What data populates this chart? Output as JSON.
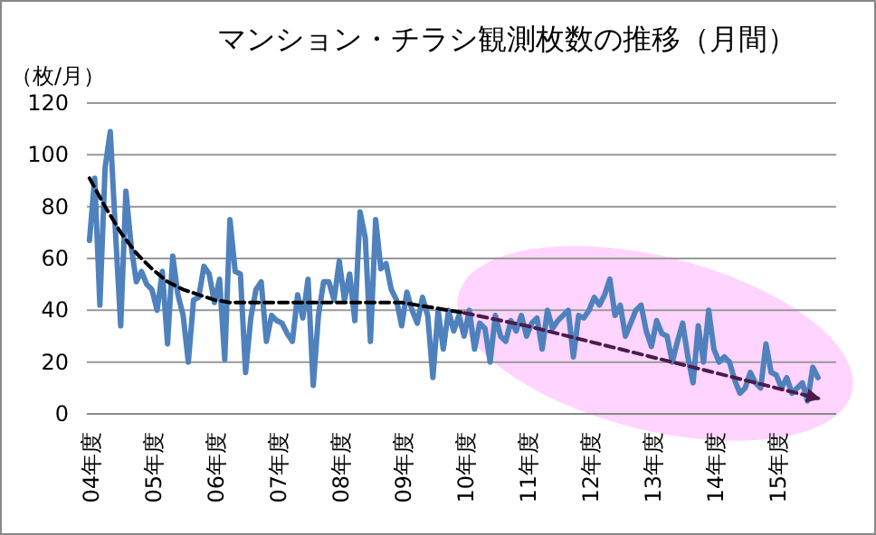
{
  "chart_data": {
    "type": "line",
    "title": "マンション・チラシ観測枚数の推移（月間）",
    "ylabel": "（枚/月）",
    "categories": [
      "04年度",
      null,
      null,
      null,
      null,
      null,
      null,
      null,
      null,
      null,
      null,
      null,
      "05年度",
      null,
      null,
      null,
      null,
      null,
      null,
      null,
      null,
      null,
      null,
      null,
      "06年度",
      null,
      null,
      null,
      null,
      null,
      null,
      null,
      null,
      null,
      null,
      null,
      "07年度",
      null,
      null,
      null,
      null,
      null,
      null,
      null,
      null,
      null,
      null,
      null,
      "08年度",
      null,
      null,
      null,
      null,
      null,
      null,
      null,
      null,
      null,
      null,
      null,
      "09年度",
      null,
      null,
      null,
      null,
      null,
      null,
      null,
      null,
      null,
      null,
      null,
      "10年度",
      null,
      null,
      null,
      null,
      null,
      null,
      null,
      null,
      null,
      null,
      null,
      "11年度",
      null,
      null,
      null,
      null,
      null,
      null,
      null,
      null,
      null,
      null,
      null,
      "12年度",
      null,
      null,
      null,
      null,
      null,
      null,
      null,
      null,
      null,
      null,
      null,
      "13年度",
      null,
      null,
      null,
      null,
      null,
      null,
      null,
      null,
      null,
      null,
      null,
      "14年度",
      null,
      null,
      null,
      null,
      null,
      null,
      null,
      null,
      null,
      null,
      null,
      "15年度",
      null,
      null,
      null,
      null,
      null,
      null,
      null,
      null,
      null,
      null,
      null
    ],
    "series": [
      {
        "color": "#4f81bd",
        "values": [
          67,
          91,
          42,
          95,
          109,
          70,
          34,
          86,
          65,
          51,
          55,
          50,
          48,
          40,
          55,
          27,
          61,
          46,
          38,
          20,
          44,
          45,
          57,
          54,
          43,
          52,
          21,
          75,
          55,
          54,
          16,
          37,
          48,
          51,
          28,
          38,
          36,
          35,
          31,
          28,
          46,
          37,
          52,
          11,
          38,
          51,
          51,
          44,
          59,
          44,
          54,
          36,
          78,
          68,
          28,
          75,
          56,
          58,
          48,
          44,
          34,
          47,
          40,
          35,
          45,
          38,
          14,
          40,
          25,
          40,
          32,
          38,
          30,
          40,
          25,
          35,
          33,
          20,
          38,
          30,
          28,
          36,
          32,
          38,
          30,
          35,
          37,
          25,
          40,
          33,
          36,
          38,
          40,
          22,
          38,
          37,
          40,
          45,
          42,
          46,
          52,
          38,
          42,
          30,
          35,
          40,
          42,
          32,
          26,
          36,
          31,
          30,
          20,
          28,
          35,
          22,
          12,
          34,
          20,
          40,
          25,
          20,
          22,
          20,
          13,
          8,
          10,
          16,
          12,
          10,
          27,
          16,
          15,
          10,
          14,
          8,
          10,
          12,
          5,
          18,
          14,
          null,
          null,
          null
        ]
      },
      {
        "type": "line",
        "color": "#000000",
        "line_style": "dashed",
        "values": [
          91,
          null,
          null,
          80,
          null,
          null,
          70,
          null,
          null,
          62,
          null,
          null,
          56,
          null,
          null,
          51,
          null,
          null,
          48,
          null,
          null,
          46,
          null,
          null,
          44,
          null,
          null,
          43,
          null,
          null,
          43,
          null,
          null,
          43,
          null,
          null,
          43,
          null,
          null,
          43,
          null,
          null,
          43,
          null,
          null,
          43,
          null,
          null,
          43,
          null,
          null,
          43,
          null,
          null,
          43,
          null,
          null,
          43,
          null,
          null,
          43,
          null,
          null,
          42,
          null,
          null,
          41,
          null,
          null,
          40,
          null,
          null,
          39,
          null,
          null,
          null,
          null,
          null,
          null,
          null,
          null,
          null,
          null,
          null,
          null,
          null,
          null,
          null,
          null,
          null,
          null,
          null,
          null,
          null,
          null,
          null,
          null,
          null,
          null,
          null,
          null,
          null,
          null,
          null,
          null,
          null,
          null,
          null,
          null,
          null,
          null,
          null,
          null,
          null,
          null,
          null,
          null,
          null,
          null,
          null,
          null,
          null,
          null,
          null,
          null,
          null,
          null,
          null,
          null,
          null,
          null,
          null,
          null,
          null,
          null,
          null,
          null,
          null,
          null,
          null,
          null,
          null,
          null,
          null
        ]
      },
      {
        "type": "line",
        "color": "#4b1c4b",
        "line_style": "dashed",
        "values": [
          null,
          null,
          null,
          null,
          null,
          null,
          null,
          null,
          null,
          null,
          null,
          null,
          null,
          null,
          null,
          null,
          null,
          null,
          null,
          null,
          null,
          null,
          null,
          null,
          null,
          null,
          null,
          null,
          null,
          null,
          null,
          null,
          null,
          null,
          null,
          null,
          null,
          null,
          null,
          null,
          null,
          null,
          null,
          null,
          null,
          null,
          null,
          null,
          null,
          null,
          null,
          null,
          null,
          null,
          null,
          null,
          null,
          null,
          null,
          null,
          null,
          null,
          null,
          null,
          null,
          null,
          null,
          null,
          null,
          null,
          null,
          null,
          39,
          null,
          null,
          null,
          null,
          null,
          null,
          null,
          null,
          null,
          null,
          null,
          34,
          null,
          null,
          null,
          null,
          null,
          null,
          null,
          null,
          null,
          null,
          null,
          28,
          null,
          null,
          null,
          null,
          null,
          null,
          null,
          null,
          null,
          null,
          null,
          22,
          null,
          null,
          null,
          null,
          null,
          null,
          null,
          null,
          null,
          null,
          null,
          16,
          null,
          null,
          null,
          null,
          null,
          null,
          null,
          null,
          null,
          null,
          null,
          10,
          null,
          null,
          null,
          null,
          null,
          null,
          null,
          6,
          null,
          null,
          null
        ]
      }
    ],
    "ylim": [
      0,
      120
    ],
    "yticks": [
      0,
      20,
      40,
      60,
      80,
      100,
      120
    ],
    "grid": "y"
  }
}
